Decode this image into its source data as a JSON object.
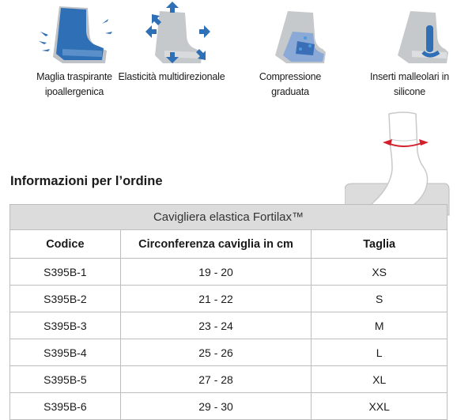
{
  "features": [
    {
      "icon": "breathable-mesh-icon",
      "label_lines": [
        "Maglia traspirante",
        "ipoallergenica"
      ]
    },
    {
      "icon": "multidirectional-elasticity-icon",
      "label_lines": [
        "Elasticità multidirezionale"
      ]
    },
    {
      "icon": "graduated-compression-icon",
      "label_lines": [
        "Compressione",
        "graduata"
      ]
    },
    {
      "icon": "silicone-inserts-icon",
      "label_lines": [
        "Inserti malleolari in",
        "silicone"
      ]
    }
  ],
  "section_title": "Informazioni per l’ordine",
  "product_name": "Cavigliera elastica Fortilax™",
  "table": {
    "headers": [
      "Codice",
      "Circonferenza caviglia in cm",
      "Taglia"
    ],
    "rows": [
      [
        "S395B-1",
        "19 - 20",
        "XS"
      ],
      [
        "S395B-2",
        "21 - 22",
        "S"
      ],
      [
        "S395B-3",
        "23 - 24",
        "M"
      ],
      [
        "S395B-4",
        "25 - 26",
        "L"
      ],
      [
        "S395B-5",
        "27 - 28",
        "XL"
      ],
      [
        "S395B-6",
        "29 - 30",
        "XXL"
      ]
    ]
  },
  "colors": {
    "blue": "#2f6fb5",
    "light_blue": "#4a9be0",
    "grey": "#bfc3c7",
    "red": "#d21f2a",
    "header_grey": "#dcdcdc"
  }
}
